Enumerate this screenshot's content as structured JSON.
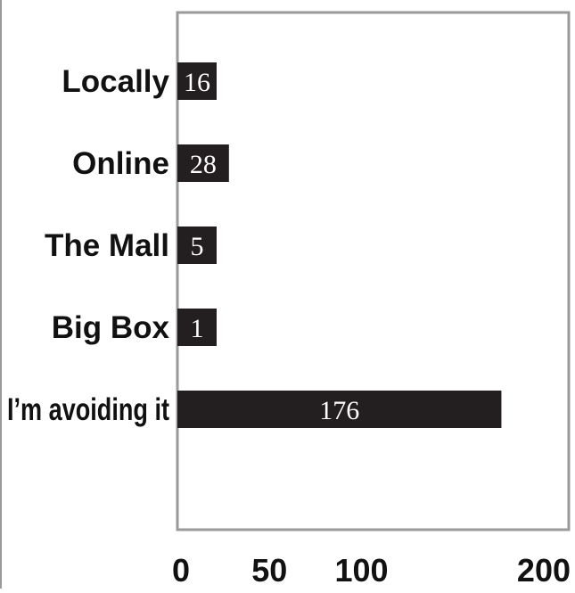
{
  "chart_data": {
    "type": "bar",
    "orientation": "horizontal",
    "title": "",
    "xlabel": "",
    "ylabel": "",
    "categories": [
      "Locally",
      "Online",
      "The Mall",
      "Big Box",
      "I’m avoiding it"
    ],
    "values": [
      16,
      28,
      5,
      1,
      176
    ],
    "data_labels": [
      "16",
      "28",
      "5",
      "1",
      "176"
    ],
    "xlim": [
      0,
      200
    ],
    "x_ticks": [
      "0",
      "50",
      "100",
      "200"
    ],
    "grid": false,
    "legend": "none",
    "colors": {
      "bar": "#231f20",
      "value_text": "#ffffff",
      "plot_border": "#9a9a9a",
      "label_text": "#111111"
    }
  }
}
